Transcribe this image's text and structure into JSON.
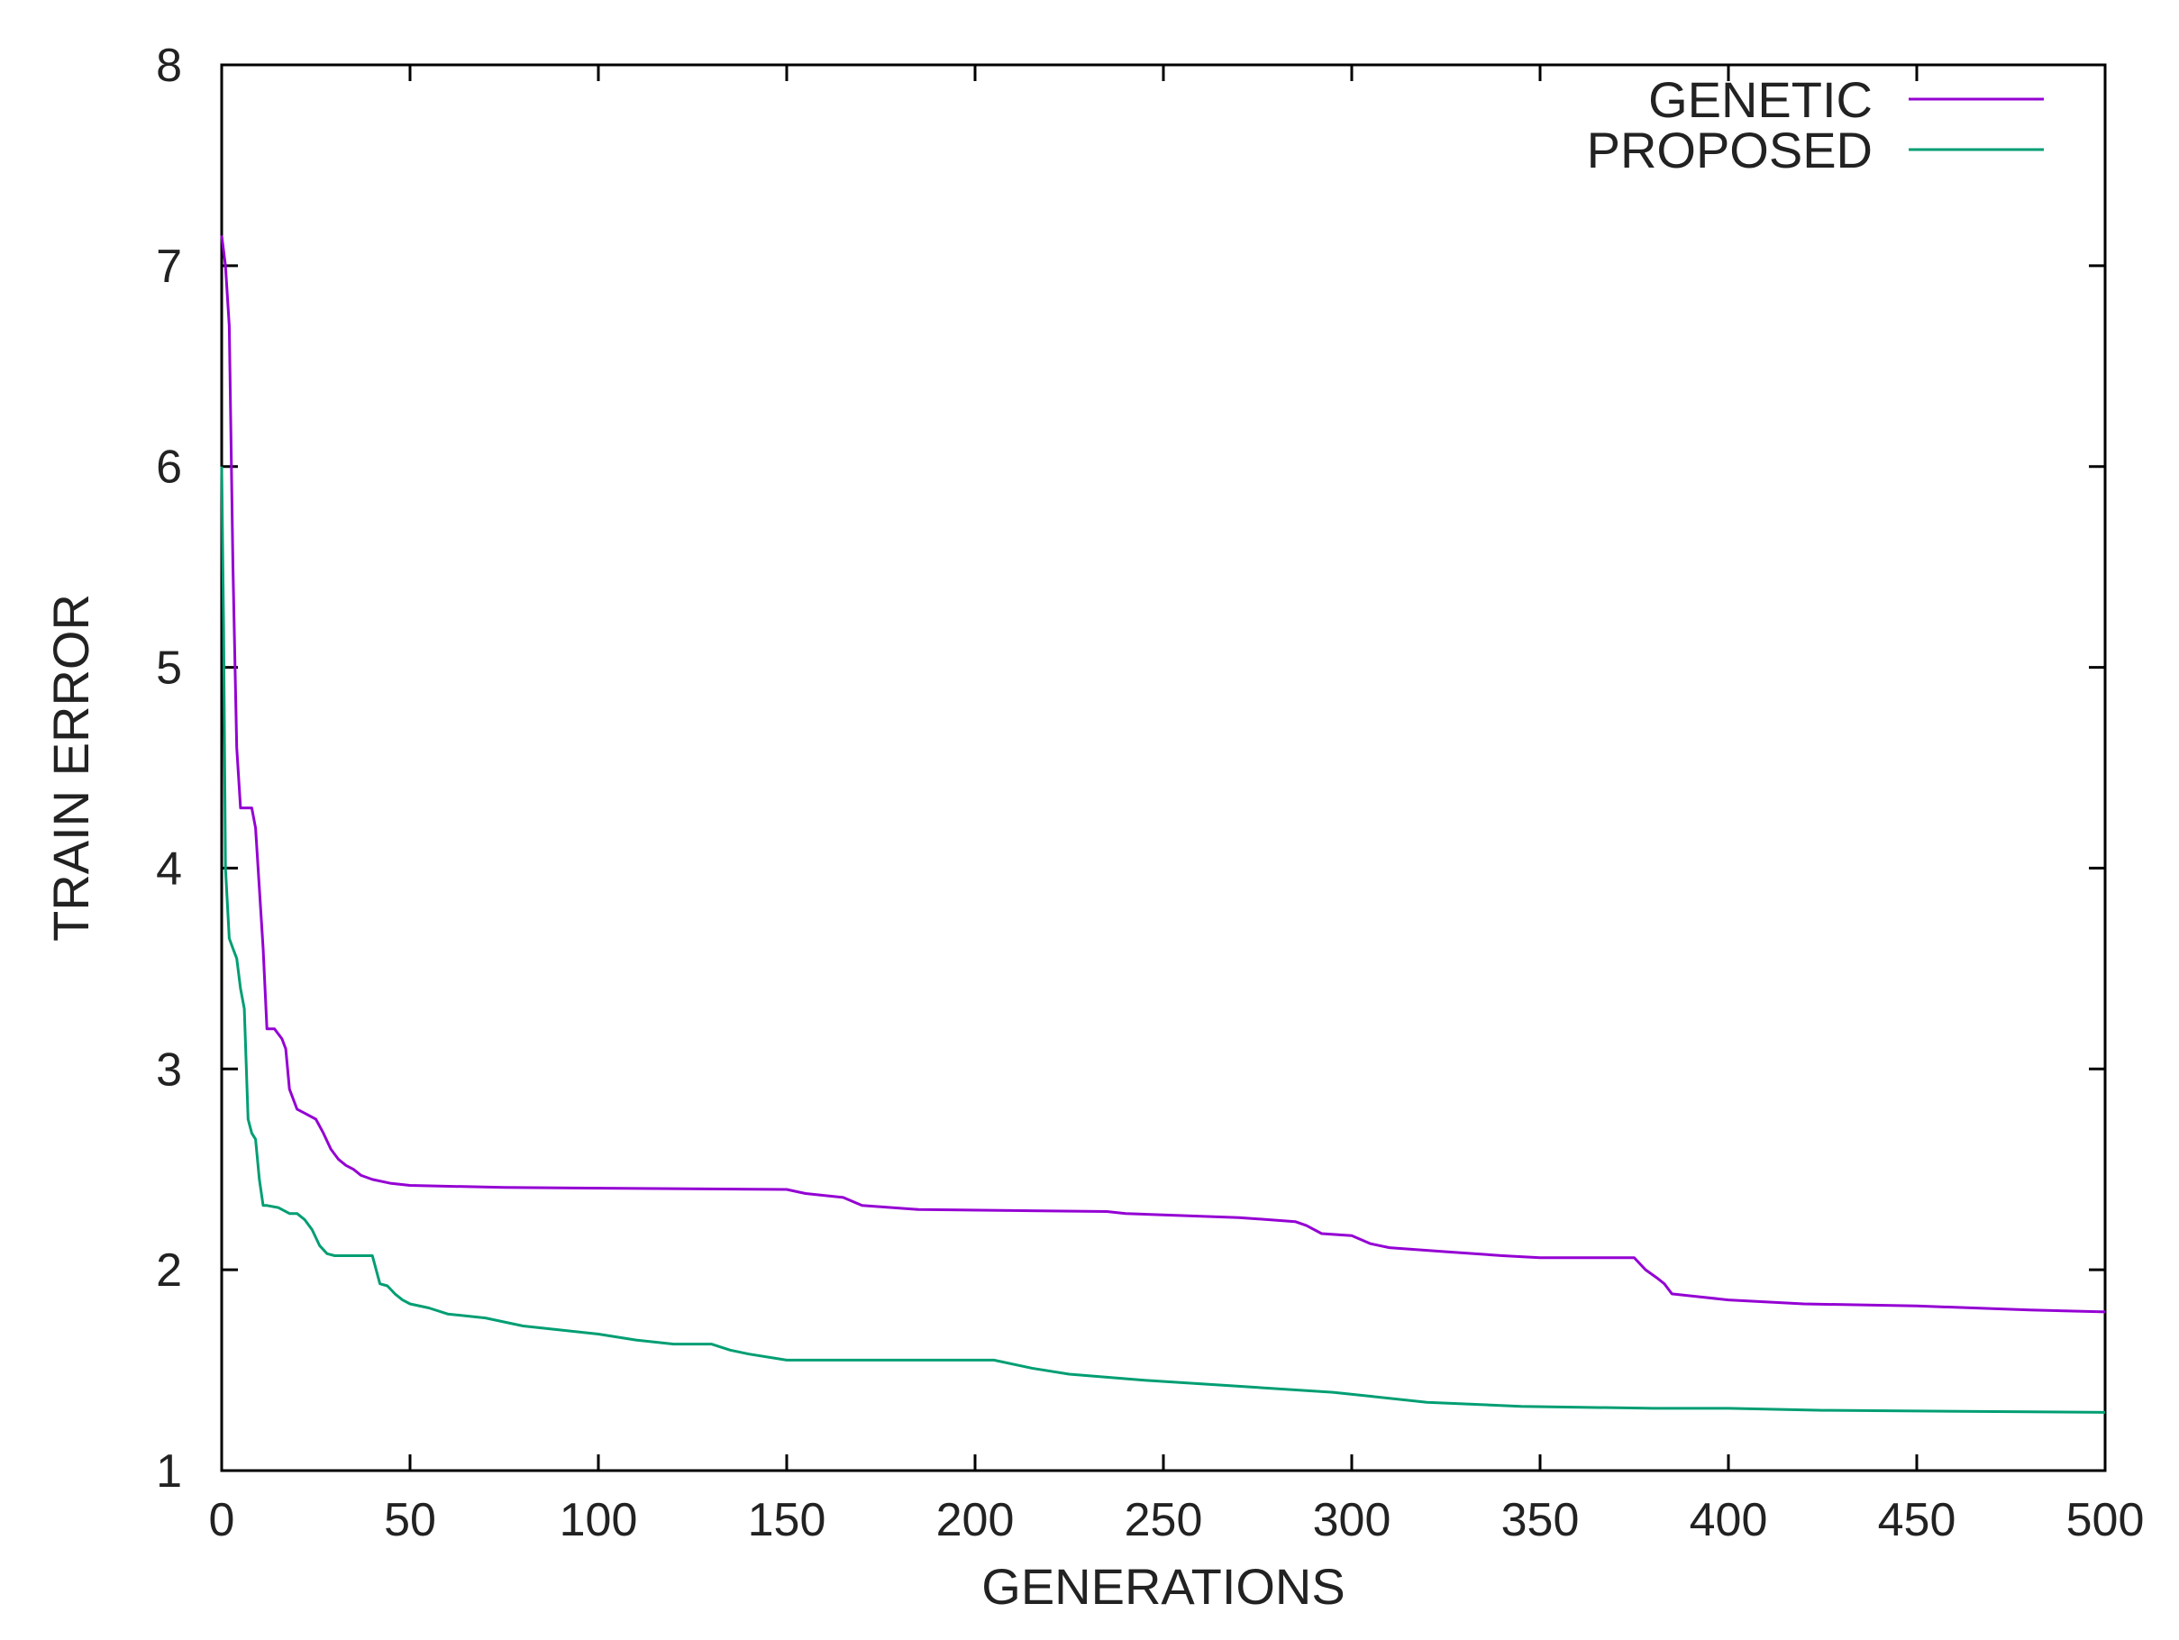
{
  "chart_data": {
    "type": "line",
    "title": "",
    "xlabel": "GENERATIONS",
    "ylabel": "TRAIN ERROR",
    "xlim": [
      0,
      500
    ],
    "ylim": [
      1,
      8
    ],
    "xticks": [
      0,
      50,
      100,
      150,
      200,
      250,
      300,
      350,
      400,
      450,
      500
    ],
    "yticks": [
      1,
      2,
      3,
      4,
      5,
      6,
      7,
      8
    ],
    "grid": false,
    "legend_position": "top-right",
    "series": [
      {
        "name": "GENETIC",
        "color": "#9400d3",
        "x": [
          0,
          1,
          2,
          3,
          4,
          5,
          6,
          8,
          9,
          10,
          11,
          12,
          14,
          16,
          17,
          18,
          20,
          22,
          25,
          27,
          29,
          31,
          33,
          35,
          37,
          40,
          45,
          50,
          75,
          150,
          155,
          165,
          170,
          185,
          235,
          240,
          270,
          285,
          288,
          292,
          300,
          305,
          310,
          325,
          340,
          350,
          375,
          378,
          381,
          383,
          385,
          390,
          400,
          420,
          450,
          480,
          500
        ],
        "y": [
          7.15,
          7.0,
          6.7,
          5.5,
          4.6,
          4.3,
          4.3,
          4.3,
          4.2,
          3.9,
          3.6,
          3.2,
          3.2,
          3.15,
          3.1,
          2.9,
          2.8,
          2.78,
          2.75,
          2.68,
          2.6,
          2.55,
          2.52,
          2.5,
          2.47,
          2.45,
          2.43,
          2.42,
          2.41,
          2.4,
          2.38,
          2.36,
          2.32,
          2.3,
          2.29,
          2.28,
          2.26,
          2.24,
          2.22,
          2.18,
          2.17,
          2.13,
          2.11,
          2.09,
          2.07,
          2.06,
          2.06,
          2.0,
          1.96,
          1.93,
          1.88,
          1.87,
          1.85,
          1.83,
          1.82,
          1.8,
          1.79
        ]
      },
      {
        "name": "PROPOSED",
        "color": "#009e73",
        "x": [
          0,
          0.5,
          1,
          2,
          3,
          4,
          5,
          6,
          7,
          8,
          9,
          10,
          11,
          12,
          15,
          18,
          20,
          22,
          24,
          26,
          28,
          30,
          35,
          40,
          42,
          44,
          46,
          48,
          50,
          55,
          60,
          70,
          80,
          90,
          100,
          110,
          120,
          130,
          135,
          140,
          150,
          180,
          205,
          215,
          225,
          245,
          270,
          295,
          305,
          320,
          345,
          380,
          400,
          425,
          500
        ],
        "y": [
          6.0,
          5.2,
          4.0,
          3.65,
          3.6,
          3.55,
          3.4,
          3.3,
          2.75,
          2.68,
          2.65,
          2.45,
          2.32,
          2.32,
          2.31,
          2.28,
          2.28,
          2.25,
          2.2,
          2.12,
          2.08,
          2.07,
          2.07,
          2.07,
          1.93,
          1.92,
          1.88,
          1.85,
          1.83,
          1.81,
          1.78,
          1.76,
          1.72,
          1.7,
          1.68,
          1.65,
          1.63,
          1.63,
          1.6,
          1.58,
          1.55,
          1.55,
          1.55,
          1.51,
          1.48,
          1.45,
          1.42,
          1.39,
          1.37,
          1.34,
          1.32,
          1.31,
          1.31,
          1.3,
          1.29
        ]
      }
    ]
  }
}
